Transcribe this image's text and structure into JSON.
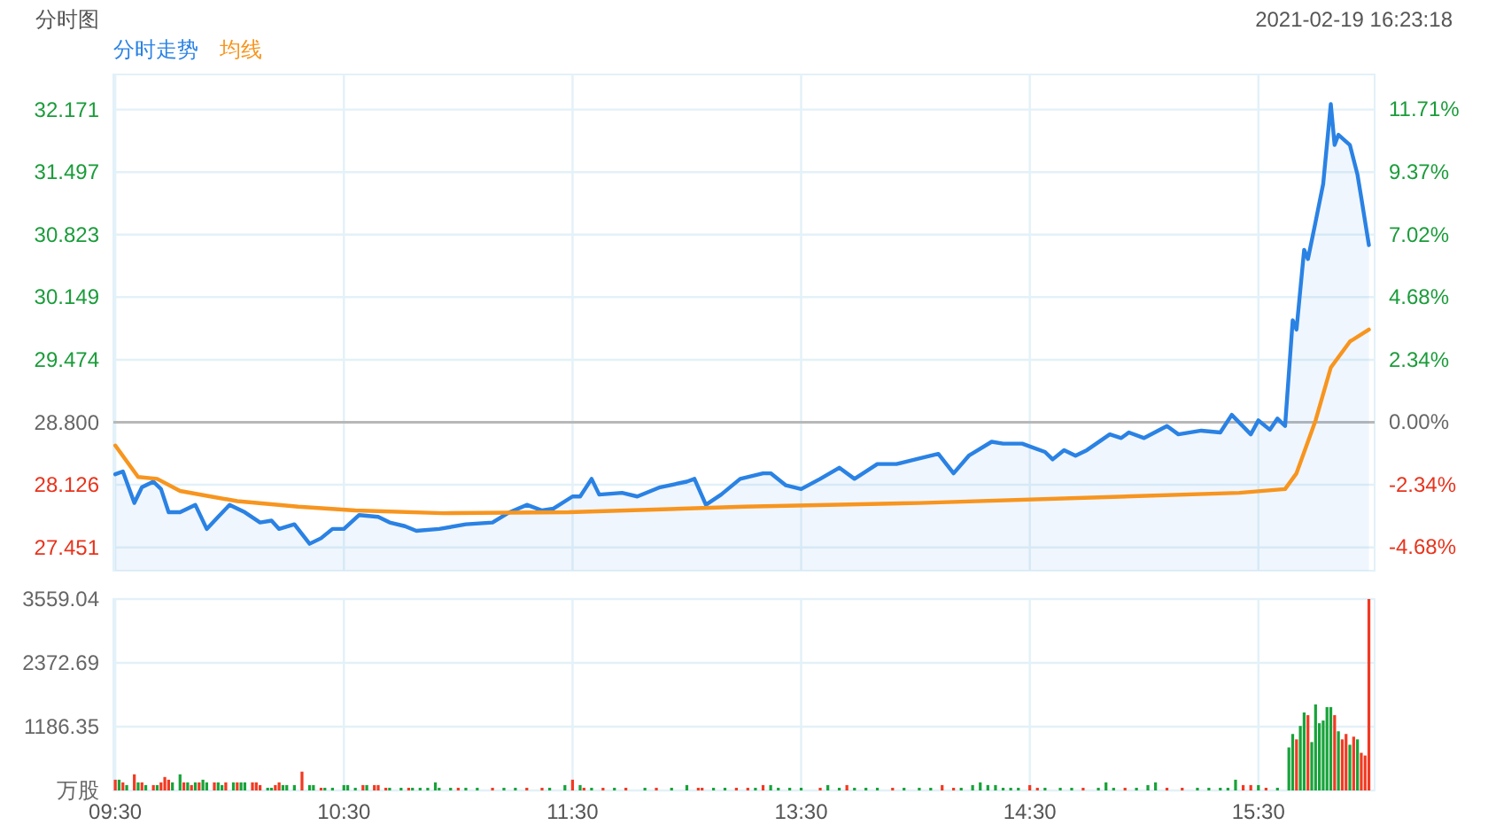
{
  "chart_data": [
    {
      "type": "line",
      "title": "分时图",
      "annotations": [
        "2021-02-19 16:23:18"
      ],
      "legend": "top left",
      "grid": true,
      "categories": [
        null,
        null,
        null,
        null,
        null,
        null,
        null,
        null,
        null,
        null,
        null,
        null,
        null,
        null,
        null,
        null,
        null,
        null,
        null,
        null,
        null,
        null,
        null,
        null,
        null,
        null,
        null,
        null,
        null,
        null,
        null,
        null,
        null,
        null,
        null,
        null,
        null,
        null,
        null,
        null,
        null,
        null,
        null,
        null,
        null,
        null,
        null,
        null,
        null,
        null,
        null,
        null,
        null,
        null,
        null,
        null,
        null,
        null,
        null,
        null,
        null,
        null,
        null,
        null,
        null,
        null,
        null,
        null,
        null,
        null,
        null,
        null,
        null,
        null,
        null,
        null,
        null,
        null,
        null,
        null,
        null,
        null,
        null,
        null,
        null,
        null,
        null,
        null,
        null,
        null,
        null,
        null,
        null,
        null,
        null,
        null,
        null,
        null,
        null,
        null,
        null,
        null,
        null,
        null,
        null,
        null,
        null,
        null,
        null,
        null,
        null,
        null,
        null,
        null,
        null,
        null,
        null,
        null,
        null,
        null,
        null,
        null,
        null,
        null,
        null,
        null,
        null,
        null,
        null,
        null,
        null,
        null,
        null,
        null,
        null,
        null,
        null,
        null,
        null,
        null,
        null,
        null,
        null,
        null,
        null,
        null,
        null,
        null,
        null,
        null,
        null,
        null,
        null,
        null,
        null,
        null,
        null,
        null,
        null,
        null,
        null,
        null,
        null,
        null,
        null,
        null,
        null,
        null,
        null,
        null,
        null,
        null,
        null,
        null,
        null,
        null,
        null,
        null,
        null,
        null,
        null,
        null,
        null,
        null,
        null,
        null,
        null,
        null,
        null,
        null,
        null,
        null,
        null,
        null,
        null,
        null,
        null,
        null,
        null,
        null,
        null,
        null,
        null,
        null,
        null,
        null,
        null,
        null,
        null,
        null,
        null,
        null,
        null,
        null,
        null,
        null,
        null,
        null,
        null,
        null,
        null,
        null,
        null,
        null,
        null,
        null,
        null,
        null,
        null,
        null,
        null,
        null,
        null,
        null,
        null,
        null,
        null,
        null,
        null,
        null,
        null,
        null,
        null,
        null,
        null,
        null,
        null,
        null,
        null,
        null,
        null,
        null,
        null,
        null,
        null,
        null,
        null,
        null,
        null,
        null,
        null,
        null,
        null,
        null,
        null,
        null,
        null,
        null,
        null,
        null,
        null,
        null,
        null,
        null,
        null,
        null,
        null,
        null,
        null,
        null,
        null,
        null,
        null,
        null,
        null,
        null,
        null,
        null,
        null,
        null,
        null,
        null,
        null,
        null,
        null,
        null,
        null,
        null,
        null,
        null,
        null,
        null,
        null,
        null,
        null,
        null,
        null,
        null,
        null,
        null,
        null,
        null,
        null,
        null,
        null,
        null,
        null,
        null,
        null,
        null,
        null,
        null,
        null,
        null,
        null,
        null,
        null,
        null,
        null,
        null,
        null
      ],
      "ylim": [
        27.2,
        32.55
      ],
      "yticks": [
        27.451,
        28.126,
        {
          "value": 28.8,
          "label": "28.800"
        },
        29.474,
        30.149,
        30.823,
        31.497,
        32.171
      ],
      "y2lim": [
        -5.56,
        13.02
      ],
      "y2ticks": [
        {
          "value": -4.68,
          "label": "-4.68%"
        },
        {
          "value": -2.34,
          "label": "-2.34%"
        },
        {
          "value": 0,
          "label": "0.00%"
        },
        {
          "value": 2.34,
          "label": "2.34%"
        },
        {
          "value": 4.68,
          "label": "4.68%"
        },
        {
          "value": 7.02,
          "label": "7.02%"
        },
        {
          "value": 9.37,
          "label": "9.37%"
        },
        {
          "value": 11.71,
          "label": "11.71%"
        }
      ],
      "ref_lines": [
        {
          "axis": "y",
          "value": 28.8,
          "color": "#b8b8b8"
        }
      ],
      "series": [
        {
          "name": "分时走势",
          "type": "area",
          "color": "#2a82e4",
          "values": [
            28.24,
            null,
            28.27,
            null,
            null,
            27.93,
            null,
            28.1,
            null,
            null,
            28.16,
            null,
            28.08,
            null,
            27.83,
            null,
            null,
            27.83,
            null,
            null,
            null,
            27.91,
            null,
            null,
            27.65,
            null,
            null,
            27.78,
            null,
            null,
            27.91,
            null,
            null,
            null,
            27.83,
            null,
            null,
            null,
            27.72,
            null,
            null,
            27.74,
            null,
            27.65,
            null,
            null,
            null,
            27.7,
            null,
            null,
            null,
            27.49,
            null,
            null,
            27.55,
            null,
            null,
            27.65,
            null,
            null,
            27.65,
            null,
            null,
            null,
            27.8,
            null,
            null,
            null,
            null,
            27.78,
            null,
            null,
            27.72,
            null,
            null,
            null,
            27.68,
            null,
            null,
            27.63,
            null,
            null,
            null,
            null,
            null,
            27.65,
            null,
            null,
            null,
            null,
            null,
            null,
            27.7,
            null,
            null,
            null,
            null,
            null,
            null,
            27.72,
            null,
            null,
            null,
            27.82,
            null,
            null,
            null,
            null,
            27.91,
            null,
            null,
            null,
            27.85,
            null,
            null,
            27.87,
            null,
            null,
            null,
            null,
            28.0,
            null,
            28.0,
            null,
            null,
            28.19,
            null,
            28.02,
            null,
            null,
            null,
            null,
            null,
            28.04,
            null,
            null,
            null,
            28.0,
            null,
            null,
            null,
            null,
            null,
            28.1,
            null,
            null,
            null,
            null,
            null,
            null,
            28.16,
            null,
            28.19,
            null,
            null,
            27.91,
            null,
            null,
            null,
            28.02,
            null,
            null,
            null,
            null,
            28.19,
            null,
            null,
            null,
            null,
            null,
            28.25,
            null,
            28.25,
            null,
            null,
            null,
            28.12,
            null,
            null,
            null,
            28.08,
            null,
            null,
            null,
            null,
            28.19,
            null,
            null,
            null,
            null,
            28.31,
            null,
            null,
            null,
            28.19,
            null,
            null,
            null,
            null,
            null,
            28.35,
            null,
            null,
            null,
            null,
            28.35,
            null,
            null,
            null,
            null,
            28.4,
            null,
            null,
            null,
            null,
            null,
            28.46,
            null,
            null,
            null,
            28.25,
            null,
            null,
            null,
            28.44,
            null,
            null,
            null,
            null,
            null,
            28.59,
            null,
            null,
            28.57,
            null,
            null,
            null,
            null,
            28.57,
            null,
            null,
            null,
            null,
            null,
            28.48,
            null,
            28.4,
            null,
            null,
            28.5,
            null,
            null,
            28.44,
            null,
            null,
            28.5,
            null,
            null,
            null,
            null,
            null,
            28.67,
            null,
            null,
            28.63,
            null,
            28.69,
            null,
            null,
            null,
            28.63,
            null,
            null,
            null,
            null,
            null,
            28.76,
            null,
            null,
            28.67,
            null,
            null,
            null,
            null,
            null,
            28.71,
            null,
            null,
            null,
            null,
            28.69,
            null,
            null,
            28.88,
            null,
            null,
            null,
            null,
            28.67,
            null,
            28.82,
            null,
            null,
            28.72,
            null,
            28.84,
            null,
            28.76,
            null,
            29.9,
            29.8,
            null,
            30.66,
            30.56,
            null,
            30.96,
            null,
            31.37,
            null,
            32.23,
            31.79,
            31.9,
            null,
            null,
            31.79,
            null,
            31.47,
            31.22,
            null,
            30.71,
            null
          ]
        },
        {
          "name": "均线",
          "color": "#f7951f",
          "values": [
            28.55,
            null,
            null,
            28.38,
            null,
            null,
            28.21,
            null,
            null,
            null,
            null,
            28.19,
            null,
            null,
            null,
            null,
            null,
            28.06,
            null,
            null,
            null,
            null,
            null,
            null,
            null,
            28.0,
            null,
            null,
            null,
            null,
            null,
            null,
            27.95,
            null,
            null,
            null,
            null,
            null,
            null,
            null,
            null,
            null,
            null,
            null,
            null,
            null,
            null,
            null,
            27.89,
            null,
            null,
            null,
            null,
            null,
            null,
            null,
            null,
            null,
            null,
            null,
            null,
            null,
            null,
            27.85,
            null,
            null,
            null,
            null,
            null,
            null,
            null,
            null,
            null,
            null,
            null,
            null,
            null,
            null,
            null,
            null,
            null,
            null,
            null,
            null,
            null,
            null,
            27.82,
            null,
            null,
            null,
            null,
            null,
            null,
            null,
            null,
            null,
            null,
            null,
            null,
            null,
            null,
            null,
            null,
            null,
            null,
            null,
            null,
            null,
            null,
            null,
            null,
            null,
            null,
            null,
            null,
            null,
            null,
            null,
            null,
            27.83,
            null,
            null,
            null,
            null,
            null,
            null,
            null,
            null,
            null,
            null,
            null,
            null,
            null,
            null,
            null,
            null,
            null,
            null,
            null,
            null,
            null,
            null,
            null,
            null,
            null,
            null,
            null,
            null,
            null,
            null,
            null,
            null,
            null,
            null,
            null,
            null,
            null,
            null,
            null,
            null,
            null,
            null,
            null,
            null,
            null,
            27.89,
            null,
            null,
            null,
            null,
            null,
            null,
            null,
            null,
            null,
            null,
            null,
            null,
            null,
            null,
            null,
            null,
            null,
            null,
            null,
            null,
            null,
            null,
            null,
            null,
            null,
            null,
            null,
            null,
            null,
            null,
            null,
            null,
            null,
            null,
            null,
            null,
            null,
            null,
            null,
            null,
            null,
            null,
            null,
            null,
            null,
            27.93,
            null,
            null,
            null,
            null,
            null,
            null,
            null,
            null,
            null,
            null,
            null,
            null,
            null,
            null,
            null,
            null,
            null,
            null,
            null,
            null,
            null,
            null,
            null,
            null,
            null,
            null,
            null,
            null,
            null,
            null,
            null,
            null,
            null,
            null,
            null,
            null,
            null,
            null,
            null,
            null,
            null,
            null,
            null,
            null,
            null,
            null,
            27.99,
            null,
            null,
            null,
            null,
            null,
            null,
            null,
            null,
            null,
            null,
            null,
            null,
            null,
            null,
            null,
            null,
            null,
            null,
            null,
            null,
            null,
            null,
            null,
            null,
            null,
            null,
            null,
            null,
            null,
            null,
            null,
            null,
            null,
            null,
            null,
            null,
            28.04,
            null,
            null,
            null,
            null,
            null,
            null,
            null,
            null,
            null,
            null,
            null,
            28.08,
            null,
            null,
            28.25,
            null,
            null,
            null,
            null,
            28.82,
            null,
            null,
            null,
            29.39,
            null,
            null,
            null,
            null,
            29.67,
            null,
            null,
            null,
            null,
            29.8,
            null
          ]
        }
      ]
    },
    {
      "type": "bar",
      "grid": true,
      "categories": [
        "09:30",
        null,
        null,
        null,
        null,
        null,
        null,
        null,
        null,
        null,
        null,
        null,
        null,
        null,
        null,
        null,
        null,
        null,
        null,
        null,
        null,
        null,
        null,
        null,
        null,
        null,
        null,
        null,
        null,
        null,
        null,
        null,
        null,
        null,
        null,
        null,
        null,
        null,
        null,
        null,
        null,
        null,
        null,
        null,
        null,
        null,
        null,
        null,
        null,
        null,
        null,
        null,
        null,
        null,
        null,
        null,
        null,
        null,
        null,
        null,
        "10:30",
        null,
        null,
        null,
        null,
        null,
        null,
        null,
        null,
        null,
        null,
        null,
        null,
        null,
        null,
        null,
        null,
        null,
        null,
        null,
        null,
        null,
        null,
        null,
        null,
        null,
        null,
        null,
        null,
        null,
        null,
        null,
        null,
        null,
        null,
        null,
        null,
        null,
        null,
        null,
        null,
        null,
        null,
        null,
        null,
        null,
        null,
        null,
        null,
        null,
        null,
        null,
        null,
        null,
        null,
        null,
        null,
        null,
        null,
        null,
        "11:30",
        null,
        null,
        null,
        null,
        null,
        null,
        null,
        null,
        null,
        null,
        null,
        null,
        null,
        null,
        null,
        null,
        null,
        null,
        null,
        null,
        null,
        null,
        null,
        null,
        null,
        null,
        null,
        null,
        null,
        null,
        null,
        null,
        null,
        null,
        null,
        null,
        null,
        null,
        null,
        null,
        null,
        null,
        null,
        null,
        null,
        null,
        null,
        null,
        null,
        null,
        null,
        null,
        null,
        null,
        null,
        null,
        null,
        null,
        null,
        "13:30",
        null,
        null,
        null,
        null,
        null,
        null,
        null,
        null,
        null,
        null,
        null,
        null,
        null,
        null,
        null,
        null,
        null,
        null,
        null,
        null,
        null,
        null,
        null,
        null,
        null,
        null,
        null,
        null,
        null,
        null,
        null,
        null,
        null,
        null,
        null,
        null,
        null,
        null,
        null,
        null,
        null,
        null,
        null,
        null,
        null,
        null,
        null,
        null,
        null,
        null,
        null,
        null,
        null,
        null,
        null,
        null,
        null,
        null,
        null,
        "14:30",
        null,
        null,
        null,
        null,
        null,
        null,
        null,
        null,
        null,
        null,
        null,
        null,
        null,
        null,
        null,
        null,
        null,
        null,
        null,
        null,
        null,
        null,
        null,
        null,
        null,
        null,
        null,
        null,
        null,
        null,
        null,
        null,
        null,
        null,
        null,
        null,
        null,
        null,
        null,
        null,
        null,
        null,
        null,
        null,
        null,
        null,
        null,
        null,
        null,
        null,
        null,
        null,
        null,
        null,
        null,
        null,
        null,
        null,
        null,
        "15:30",
        null,
        null,
        null,
        null,
        null,
        null,
        null,
        null,
        null,
        null,
        null,
        null,
        null,
        null,
        null,
        null,
        null,
        null,
        null,
        null,
        null,
        null,
        null,
        null,
        null,
        null,
        null,
        null,
        null,
        null
      ],
      "ylim": [
        0,
        3559.04
      ],
      "yticks": [
        {
          "value": 0,
          "label": "万股"
        },
        1186.35,
        2372.69,
        3559.04
      ],
      "series": [
        {
          "color": "#f23a22",
          "values": [
            200,
            null,
            150,
            null,
            null,
            300,
            null,
            150,
            null,
            null,
            100,
            null,
            150,
            250,
            200,
            null,
            null,
            null,
            150,
            null,
            100,
            null,
            150,
            null,
            null,
            null,
            150,
            null,
            null,
            150,
            null,
            null,
            150,
            null,
            null,
            null,
            150,
            150,
            100,
            null,
            null,
            null,
            100,
            150,
            null,
            null,
            null,
            null,
            null,
            350,
            null,
            null,
            null,
            null,
            50,
            null,
            null,
            null,
            null,
            null,
            null,
            null,
            null,
            null,
            null,
            100,
            null,
            null,
            100,
            100,
            null,
            50,
            null,
            null,
            null,
            null,
            null,
            50,
            null,
            null,
            null,
            null,
            null,
            null,
            null,
            null,
            null,
            null,
            null,
            null,
            50,
            null,
            null,
            null,
            null,
            null,
            null,
            null,
            null,
            50,
            null,
            null,
            null,
            null,
            null,
            null,
            null,
            null,
            50,
            null,
            null,
            null,
            50,
            null,
            null,
            null,
            null,
            null,
            null,
            null,
            200,
            null,
            null,
            50,
            null,
            null,
            null,
            null,
            50,
            null,
            null,
            null,
            null,
            null,
            50,
            null,
            null,
            null,
            null,
            null,
            null,
            null,
            50,
            null,
            null,
            null,
            null,
            null,
            null,
            null,
            null,
            null,
            null,
            50,
            50,
            null,
            null,
            null,
            null,
            null,
            null,
            null,
            null,
            50,
            null,
            null,
            50,
            null,
            null,
            null,
            100,
            null,
            null,
            null,
            null,
            null,
            null,
            null,
            null,
            null,
            null,
            null,
            null,
            null,
            null,
            50,
            null,
            null,
            null,
            null,
            null,
            null,
            100,
            null,
            null,
            null,
            null,
            null,
            null,
            null,
            null,
            null,
            null,
            null,
            50,
            null,
            null,
            null,
            null,
            null,
            null,
            null,
            null,
            null,
            null,
            null,
            null,
            100,
            null,
            null,
            50,
            null,
            null,
            null,
            null,
            null,
            null,
            null,
            null,
            null,
            null,
            null,
            null,
            null,
            null,
            null,
            null,
            null,
            null,
            null,
            100,
            null,
            50,
            null,
            null,
            null,
            null,
            null,
            null,
            null,
            null,
            null,
            null,
            null,
            50,
            null,
            null,
            null,
            null,
            null,
            null,
            null,
            null,
            null,
            null,
            50,
            null,
            null,
            null,
            null,
            null,
            null,
            null,
            null,
            null,
            null,
            50,
            null,
            null,
            null,
            50,
            null,
            null,
            null,
            null,
            null,
            null,
            null,
            null,
            null,
            null,
            null,
            null,
            null,
            null,
            null,
            100,
            null,
            100,
            null,
            null,
            null,
            50,
            null,
            null,
            null,
            null,
            null,
            null,
            null,
            950,
            null,
            null,
            1400,
            null,
            null,
            null,
            null,
            null,
            null,
            1400,
            null,
            950,
            1050,
            null,
            1000,
            null,
            700,
            650,
            3559.04,
            null
          ]
        },
        {
          "color": "#18a33a",
          "values": [
            null,
            200,
            null,
            100,
            null,
            null,
            150,
            null,
            100,
            null,
            null,
            100,
            null,
            null,
            null,
            150,
            null,
            300,
            null,
            150,
            null,
            150,
            null,
            200,
            150,
            null,
            null,
            150,
            100,
            null,
            null,
            150,
            null,
            150,
            150,
            null,
            null,
            null,
            null,
            null,
            50,
            50,
            null,
            null,
            100,
            100,
            null,
            100,
            null,
            null,
            null,
            100,
            100,
            null,
            null,
            50,
            null,
            50,
            null,
            null,
            100,
            100,
            null,
            50,
            null,
            null,
            100,
            null,
            null,
            null,
            null,
            null,
            50,
            null,
            null,
            50,
            null,
            null,
            50,
            null,
            50,
            null,
            50,
            null,
            150,
            50,
            null,
            null,
            50,
            null,
            null,
            null,
            50,
            null,
            null,
            50,
            null,
            null,
            null,
            null,
            null,
            null,
            50,
            null,
            null,
            50,
            null,
            null,
            null,
            null,
            null,
            null,
            null,
            null,
            50,
            null,
            null,
            null,
            100,
            null,
            null,
            null,
            100,
            null,
            null,
            50,
            null,
            null,
            null,
            null,
            null,
            50,
            null,
            null,
            null,
            null,
            null,
            null,
            null,
            50,
            null,
            null,
            null,
            null,
            null,
            null,
            50,
            null,
            null,
            null,
            100,
            null,
            null,
            null,
            null,
            null,
            null,
            50,
            null,
            null,
            50,
            null,
            null,
            null,
            null,
            null,
            null,
            null,
            50,
            null,
            null,
            null,
            100,
            null,
            50,
            null,
            null,
            50,
            null,
            null,
            50,
            null,
            null,
            null,
            null,
            null,
            null,
            100,
            null,
            null,
            50,
            null,
            null,
            null,
            50,
            null,
            null,
            50,
            null,
            null,
            50,
            null,
            null,
            null,
            null,
            null,
            null,
            50,
            null,
            null,
            null,
            50,
            null,
            null,
            50,
            null,
            null,
            null,
            null,
            null,
            null,
            null,
            50,
            null,
            null,
            100,
            null,
            150,
            null,
            100,
            null,
            100,
            null,
            50,
            null,
            50,
            null,
            50,
            null,
            null,
            null,
            null,
            null,
            null,
            50,
            null,
            null,
            null,
            50,
            null,
            null,
            50,
            null,
            null,
            null,
            null,
            null,
            null,
            50,
            null,
            150,
            null,
            50,
            null,
            null,
            null,
            null,
            null,
            50,
            null,
            null,
            100,
            null,
            150,
            null,
            null,
            null,
            null,
            null,
            null,
            null,
            null,
            null,
            null,
            50,
            null,
            null,
            50,
            null,
            null,
            50,
            null,
            50,
            null,
            200,
            null,
            null,
            null,
            null,
            null,
            100,
            null,
            null,
            null,
            null,
            50,
            null,
            null,
            800,
            1050,
            null,
            1200,
            1450,
            null,
            900,
            1600,
            1250,
            1300,
            1550,
            1550,
            null,
            1100,
            null,
            null,
            850,
            null,
            950,
            null,
            null,
            null,
            null
          ]
        }
      ]
    }
  ]
}
